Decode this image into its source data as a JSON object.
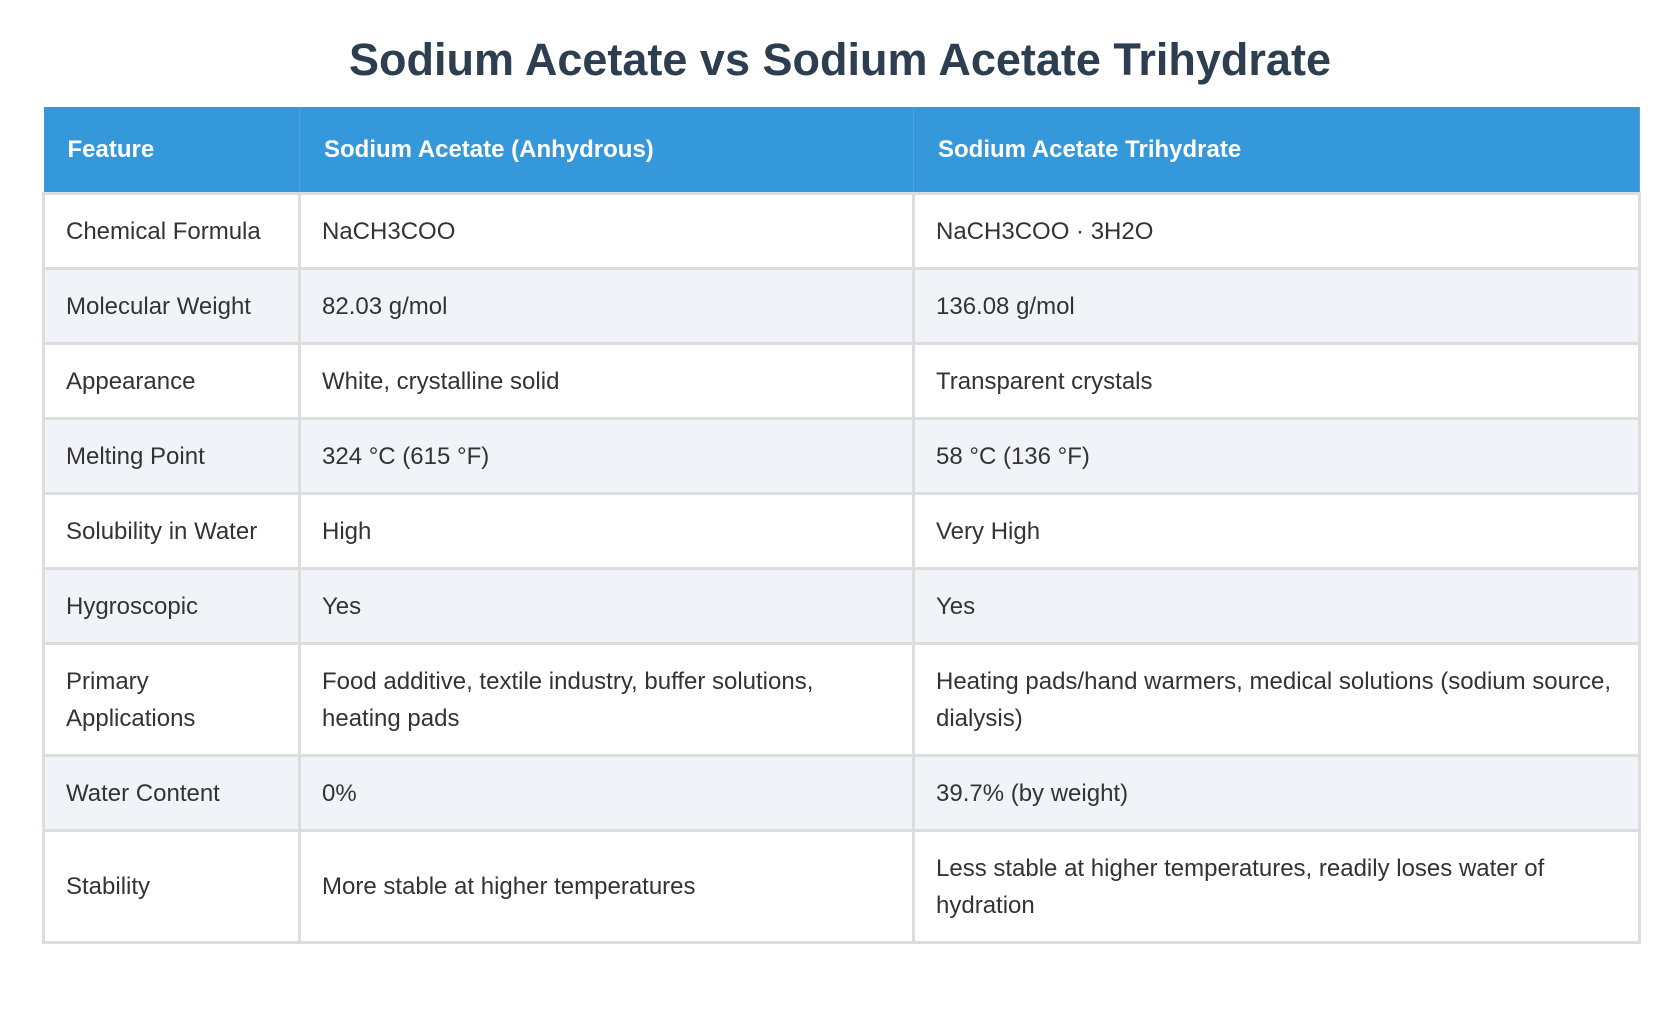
{
  "header": {
    "title": "Sodium Acetate vs Sodium Acetate Trihydrate"
  },
  "table": {
    "columns": [
      "Feature",
      "Sodium Acetate (Anhydrous)",
      "Sodium Acetate Trihydrate"
    ],
    "rows": [
      [
        "Chemical Formula",
        "NaCH3COO",
        "NaCH3COO · 3H2O"
      ],
      [
        "Molecular Weight",
        "82.03 g/mol",
        "136.08 g/mol"
      ],
      [
        "Appearance",
        "White, crystalline solid",
        "Transparent crystals"
      ],
      [
        "Melting Point",
        "324 °C (615 °F)",
        "58 °C (136 °F)"
      ],
      [
        "Solubility in Water",
        "High",
        "Very High"
      ],
      [
        "Hygroscopic",
        "Yes",
        "Yes"
      ],
      [
        "Primary Applications",
        "Food additive, textile industry, buffer solutions, heating pads",
        "Heating pads/hand warmers, medical solutions (sodium source, dialysis)"
      ],
      [
        "Water Content",
        "0%",
        "39.7% (by weight)"
      ],
      [
        "Stability",
        "More stable at higher temperatures",
        "Less stable at higher temperatures, readily loses water of hydration"
      ]
    ]
  }
}
